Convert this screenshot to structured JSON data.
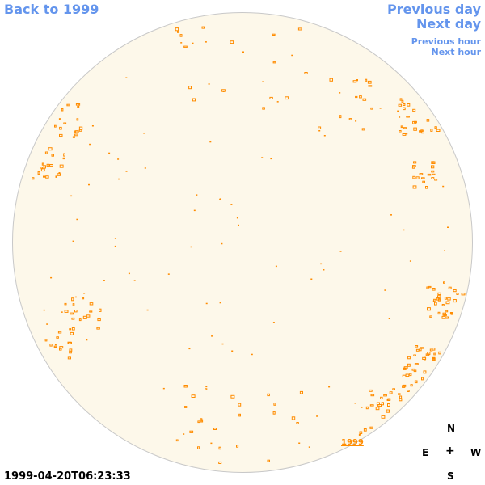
{
  "nav": {
    "back_label": "Back to 1999",
    "prev_day_label": "Previous day",
    "next_day_label": "Next day",
    "prev_hour_label": "Previous hour",
    "next_hour_label": "Next hour"
  },
  "image": {
    "year_stamp": "1999",
    "timestamp": "1999-04-20T06:23:33"
  },
  "compass": {
    "north": "N",
    "east": "E",
    "west": "W",
    "south": "S",
    "center": "+"
  },
  "colors": {
    "link": "#6495ed",
    "disk": "#fdf8ea",
    "feature": "#ff8c00"
  }
}
